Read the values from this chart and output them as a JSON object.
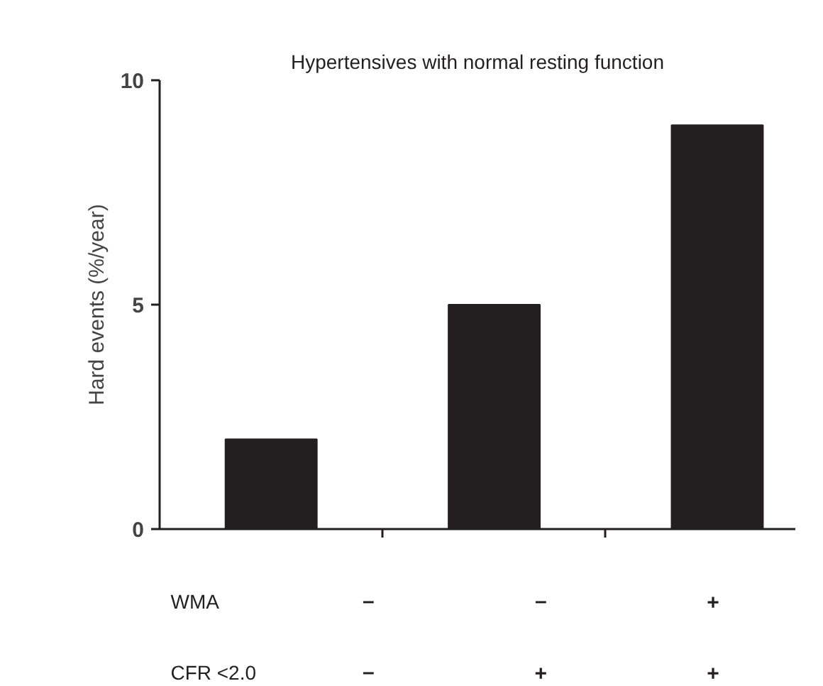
{
  "chart_data": {
    "type": "bar",
    "title": "Hypertensives with normal resting function",
    "ylabel": "Hard events (%/year)",
    "categories": [
      null,
      null,
      null
    ],
    "values": [
      2,
      5,
      9
    ],
    "color": "#231f20",
    "ylim": [
      0,
      10
    ],
    "yticks": [
      0,
      5,
      10
    ],
    "grid": false,
    "annotations": [
      "WMA",
      "–",
      "–",
      "+",
      "CFR <2.0",
      "–",
      "+",
      "+"
    ]
  }
}
